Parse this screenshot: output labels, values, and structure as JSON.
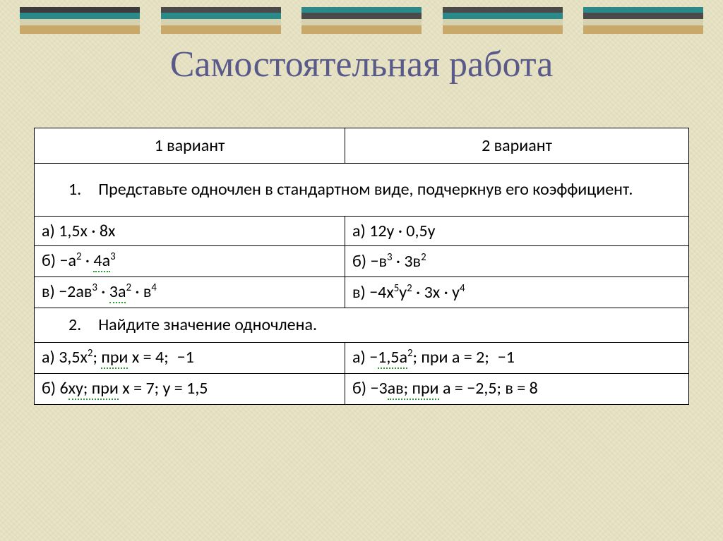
{
  "title": "Самостоятельная работа",
  "bars": [
    {
      "c1": "#3c3c3c",
      "c2": "#2a8a8a",
      "c3": "#d6d2b0"
    },
    {
      "c1": "#4a4a4a",
      "c2": "#2a8a8a",
      "c3": "#d6d2b0"
    },
    {
      "c1": "#2a8a8a",
      "c2": "#4a4a4a",
      "c3": "#d6d2b0"
    },
    {
      "c1": "#4a4a4a",
      "c2": "#2a8a8a",
      "c3": "#d6d2b0"
    },
    {
      "c1": "#2a8a8a",
      "c2": "#4a4a4a",
      "c3": "#d6d2b0"
    }
  ],
  "table": {
    "headers": [
      "1 вариант",
      "2 вариант"
    ],
    "task1": "1. Представьте одночлен в стандартном виде, подчеркнув его коэффициент.",
    "task2": "2. Найдите значение одночлена.",
    "rows1": [
      {
        "v1_html": "а) 1,5x · 8x",
        "v2_html": "а) 12y · 0,5y"
      },
      {
        "v1_html": "б) −a<sup>2</sup> · <span class='squig'>4a</span><sup>3</sup>",
        "v2_html": "б) −в<sup>3</sup> · 3в<sup>2</sup>"
      },
      {
        "v1_html": "в) −2ав<sup>3</sup> · <span class='squig'>3a</span><sup>2</sup> · в<sup>4</sup>",
        "v2_html": "в) −4x<sup>5</sup>y<sup>2</sup> · 3x · y<sup>4</sup>"
      }
    ],
    "rows2": [
      {
        "v1_html": "а) 3,5x<sup>2</sup>; <span class='squig'>при</span> x = 4; −1",
        "v2_html": "а) −<span class='squig'>1,5a</span><sup>2</sup>; при a = 2; −1"
      },
      {
        "v1_html": "б) 6<span class='squig'>xy; при</span> x = 7; y = 1,5",
        "v2_html": "б) −3<span class='squig'>ав; при</span> a = −2,5; в = 8"
      }
    ]
  }
}
